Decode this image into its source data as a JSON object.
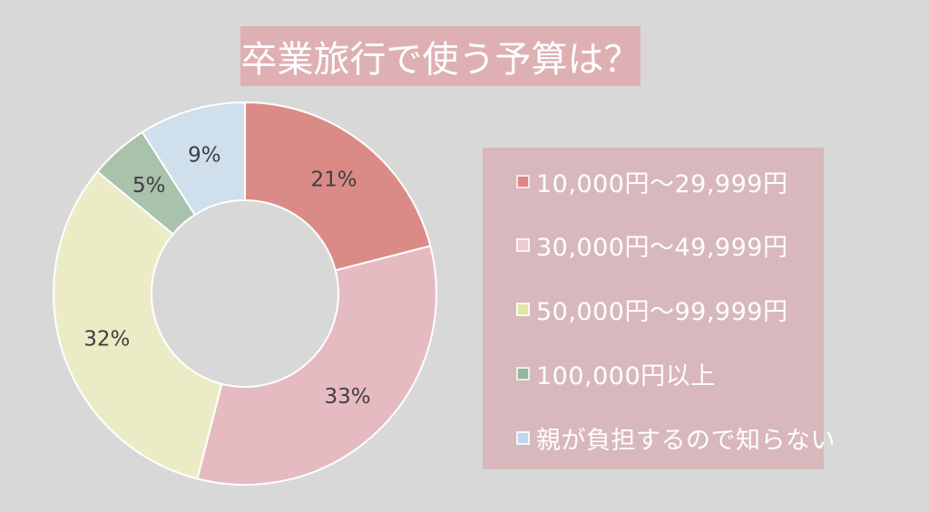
{
  "page": {
    "background": "#d8d8d8"
  },
  "title": {
    "text": "卒業旅行で使う予算は？",
    "bg": "#deb0b4",
    "color": "#ffffff"
  },
  "chart_data": {
    "type": "pie",
    "variant": "donut",
    "title": "卒業旅行で使う予算は？",
    "direction": "clockwise",
    "start_angle_deg": 0,
    "categories": [
      "10,000円〜29,999円",
      "30,000円〜49,999円",
      "50,000円〜99,999円",
      "100,000円以上",
      "親が負担するので知らない"
    ],
    "values": [
      21,
      33,
      32,
      5,
      9
    ],
    "unit": "%",
    "labels": [
      "21%",
      "33%",
      "32%",
      "5%",
      "9%"
    ],
    "slice_colors": [
      "#db8b87",
      "#e6bac1",
      "#ebecc6",
      "#a8c2ac",
      "#cfdfeb"
    ],
    "slice_border_color": "#ffffff",
    "label_color": "#3f3f3f",
    "legend_position": "right",
    "hole_ratio": 0.49
  },
  "legend": {
    "bg": "#d8b8bc",
    "text_color": "#ffffff",
    "items": [
      {
        "label": "10,000円〜29,999円",
        "color": "#dc8986"
      },
      {
        "label": "30,000円〜49,999円",
        "color": "#eec9cf"
      },
      {
        "label": "50,000円〜99,999円",
        "color": "#e2e5a4"
      },
      {
        "label": "100,000円以上",
        "color": "#95b69c"
      },
      {
        "label": "親が負担するので知らない",
        "color": "#bdd8ed"
      }
    ]
  }
}
